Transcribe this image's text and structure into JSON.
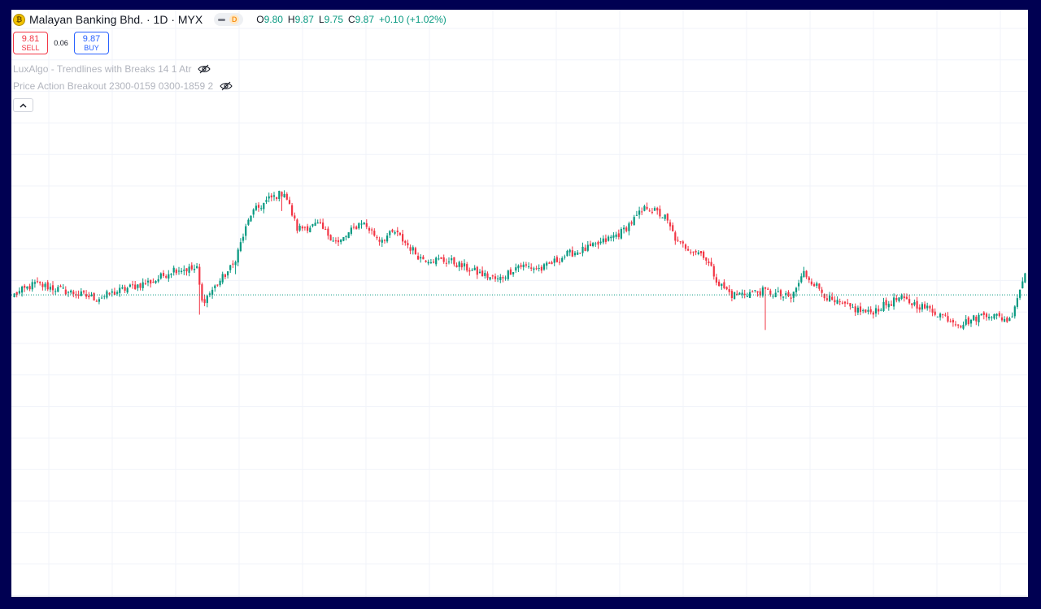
{
  "header": {
    "logo_glyph": "₿",
    "symbol_title": "Malayan Banking Bhd. · 1D · MYX",
    "badge_letter": "D",
    "ohlc": {
      "open_label": "O",
      "open": "9.80",
      "high_label": "H",
      "high": "9.87",
      "low_label": "L",
      "low": "9.75",
      "close_label": "C",
      "close": "9.87",
      "change": "+0.10 (+1.02%)"
    }
  },
  "trade": {
    "sell_price": "9.81",
    "sell_label": "SELL",
    "spread": "0.06",
    "buy_price": "9.87",
    "buy_label": "BUY"
  },
  "indicators": [
    {
      "label": "LuxAlgo - Trendlines with Breaks 14 1 Atr"
    },
    {
      "label": "Price Action Breakout 2300-0159 0300-1859 2"
    }
  ],
  "colors": {
    "up": "#089981",
    "down": "#f23645",
    "grid": "#f0f3fa",
    "price_line": "#089981"
  },
  "icons": [
    "eye-crossed-icon",
    "chevron-up-icon"
  ],
  "chart_data": {
    "type": "candlestick",
    "last_close": 9.87,
    "price_range": [
      9.53,
      10.27
    ],
    "anchors": [
      [
        0,
        9.87
      ],
      [
        8,
        9.9
      ],
      [
        20,
        9.88
      ],
      [
        32,
        9.86
      ],
      [
        45,
        9.89
      ],
      [
        55,
        9.91
      ],
      [
        62,
        9.94
      ],
      [
        71,
        9.94
      ],
      [
        73,
        9.85
      ],
      [
        85,
        9.95
      ],
      [
        92,
        10.09
      ],
      [
        99,
        10.13
      ],
      [
        105,
        10.15
      ],
      [
        110,
        10.05
      ],
      [
        118,
        10.06
      ],
      [
        126,
        10.01
      ],
      [
        135,
        10.07
      ],
      [
        142,
        10.02
      ],
      [
        148,
        10.04
      ],
      [
        158,
        9.97
      ],
      [
        170,
        9.96
      ],
      [
        180,
        9.93
      ],
      [
        188,
        9.91
      ],
      [
        196,
        9.95
      ],
      [
        205,
        9.94
      ],
      [
        215,
        9.98
      ],
      [
        225,
        10.0
      ],
      [
        236,
        10.04
      ],
      [
        246,
        10.11
      ],
      [
        253,
        10.08
      ],
      [
        258,
        10.01
      ],
      [
        268,
        9.98
      ],
      [
        274,
        9.9
      ],
      [
        279,
        9.87
      ],
      [
        292,
        9.88
      ],
      [
        302,
        9.86
      ],
      [
        307,
        9.93
      ],
      [
        318,
        9.85
      ],
      [
        332,
        9.82
      ],
      [
        344,
        9.86
      ],
      [
        356,
        9.83
      ],
      [
        368,
        9.79
      ],
      [
        378,
        9.82
      ],
      [
        387,
        9.8
      ],
      [
        393,
        9.93
      ]
    ]
  }
}
